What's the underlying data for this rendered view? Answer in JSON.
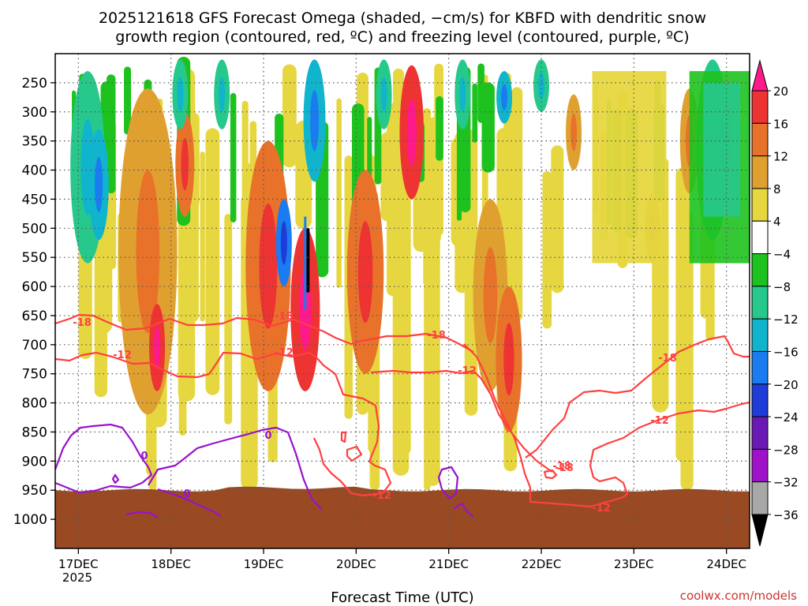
{
  "chart_data": {
    "type": "heatmap",
    "title_line1": "2025121618 GFS Forecast Omega (shaded, −cm/s) for KBFD with dendritic snow",
    "title_line2": "growth region (contoured, red, ºC) and freezing level (contoured, purple, ºC)",
    "xlabel": "Forecast Time (UTC)",
    "ylabel": "",
    "credit": "coolwx.com/models",
    "x_ticks": [
      "17DEC",
      "18DEC",
      "19DEC",
      "20DEC",
      "21DEC",
      "22DEC",
      "23DEC",
      "24DEC"
    ],
    "x_year": "2025",
    "y_ticks": [
      250,
      300,
      350,
      400,
      450,
      500,
      550,
      600,
      650,
      700,
      750,
      800,
      850,
      900,
      950,
      1000
    ],
    "y_tick_labels": [
      "250",
      "300",
      "350",
      "400",
      "450",
      "500",
      "550",
      "600",
      "650",
      "700",
      "750",
      "800",
      "850",
      "900",
      "950",
      "1000"
    ],
    "ylim": [
      1050,
      200
    ],
    "xlim_days": [
      -0.25,
      7.25
    ],
    "surface_pressure": 950,
    "colorbar": {
      "labels": [
        "20",
        "16",
        "12",
        "8",
        "4",
        "−4",
        "−8",
        "−12",
        "−16",
        "−20",
        "−24",
        "−28",
        "−32",
        "−36"
      ],
      "colors": [
        "#ff1a8c",
        "#ee3333",
        "#e8722a",
        "#e0a030",
        "#e6d740",
        "#ffffff",
        "#1ec21e",
        "#27c88c",
        "#10b4cc",
        "#1a7cf0",
        "#1e3cd8",
        "#6a1ab4",
        "#a012c8",
        "#a8a8a8",
        "#000000"
      ]
    },
    "contour_colors": {
      "dgz": "#ff4040",
      "freezing": "#9912cc",
      "ground": "#9a4a22"
    },
    "contour_labels": {
      "dgz": [
        "-18",
        "-18",
        "-18",
        "-12",
        "-12",
        "-12",
        "-18",
        "-12",
        "-18",
        "-12",
        "-12",
        "-18"
      ],
      "freezing": [
        "0",
        "0",
        "0"
      ]
    },
    "omega_regions": [
      {
        "day": 0.1,
        "p_top": 230,
        "p_bot": 560,
        "value": -8
      },
      {
        "day": 0.22,
        "p_top": 330,
        "p_bot": 520,
        "value": -12
      },
      {
        "day": 0.75,
        "p_top": 260,
        "p_bot": 820,
        "value": 8
      },
      {
        "day": 0.85,
        "p_top": 630,
        "p_bot": 780,
        "value": 16
      },
      {
        "day": 1.15,
        "p_top": 300,
        "p_bot": 480,
        "value": 12
      },
      {
        "day": 1.1,
        "p_top": 210,
        "p_bot": 330,
        "value": -8
      },
      {
        "day": 1.55,
        "p_top": 210,
        "p_bot": 330,
        "value": -8
      },
      {
        "day": 2.05,
        "p_top": 350,
        "p_bot": 780,
        "value": 12
      },
      {
        "day": 2.22,
        "p_top": 450,
        "p_bot": 600,
        "value": -16
      },
      {
        "day": 2.45,
        "p_top": 500,
        "p_bot": 780,
        "value": 16
      },
      {
        "day": 2.55,
        "p_top": 210,
        "p_bot": 420,
        "value": -12
      },
      {
        "day": 3.1,
        "p_top": 400,
        "p_bot": 750,
        "value": 12
      },
      {
        "day": 3.6,
        "p_top": 220,
        "p_bot": 450,
        "value": 16
      },
      {
        "day": 3.3,
        "p_top": 210,
        "p_bot": 330,
        "value": -8
      },
      {
        "day": 4.15,
        "p_top": 210,
        "p_bot": 330,
        "value": -8
      },
      {
        "day": 4.45,
        "p_top": 450,
        "p_bot": 780,
        "value": 8
      },
      {
        "day": 4.6,
        "p_top": 230,
        "p_bot": 320,
        "value": -12
      },
      {
        "day": 4.65,
        "p_top": 600,
        "p_bot": 850,
        "value": 12
      },
      {
        "day": 5.0,
        "p_top": 210,
        "p_bot": 300,
        "value": -8
      },
      {
        "day": 5.35,
        "p_top": 270,
        "p_bot": 400,
        "value": 8
      },
      {
        "day": 6.2,
        "p_top": 440,
        "p_bot": 560,
        "value": 8
      },
      {
        "day": 6.6,
        "p_top": 260,
        "p_bot": 440,
        "value": 8
      },
      {
        "day": 6.85,
        "p_top": 210,
        "p_bot": 520,
        "value": -8
      },
      {
        "day": 6.95,
        "p_top": 260,
        "p_bot": 440,
        "value": -12
      }
    ]
  }
}
